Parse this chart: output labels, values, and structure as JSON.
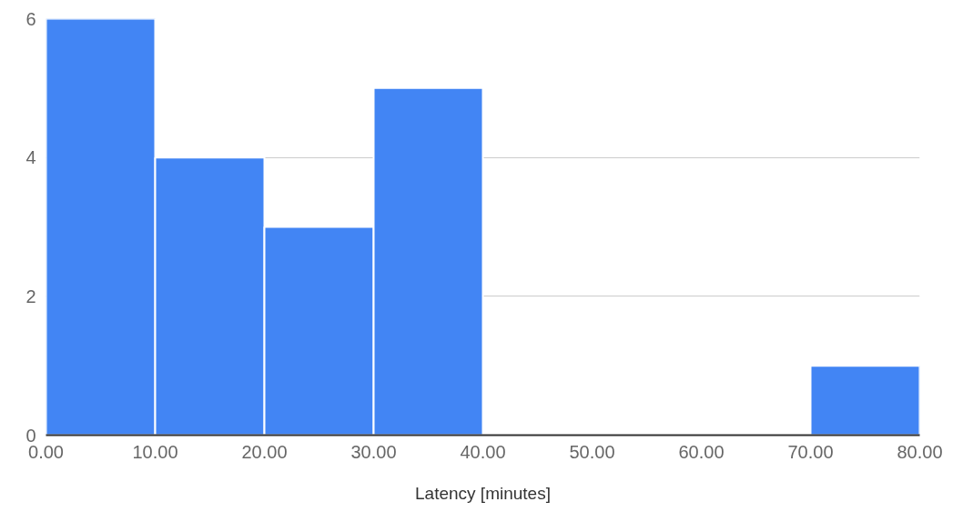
{
  "chart_data": {
    "type": "histogram",
    "xlabel": "Latency [minutes]",
    "bins": [
      0,
      10,
      20,
      30,
      40,
      50,
      60,
      70,
      80
    ],
    "values": [
      6,
      4,
      3,
      5,
      0,
      0,
      0,
      1
    ],
    "color": "#4285f4",
    "xlim": [
      0,
      80
    ],
    "ylim": [
      0,
      6
    ],
    "xticks": [
      {
        "value": 0,
        "label": "0.00"
      },
      {
        "value": 10,
        "label": "10.00"
      },
      {
        "value": 20,
        "label": "20.00"
      },
      {
        "value": 30,
        "label": "30.00"
      },
      {
        "value": 40,
        "label": "40.00"
      },
      {
        "value": 50,
        "label": "50.00"
      },
      {
        "value": 60,
        "label": "60.00"
      },
      {
        "value": 70,
        "label": "70.00"
      },
      {
        "value": 80,
        "label": "80.00"
      }
    ],
    "yticks": [
      0,
      2,
      4,
      6
    ],
    "grid": "y"
  }
}
